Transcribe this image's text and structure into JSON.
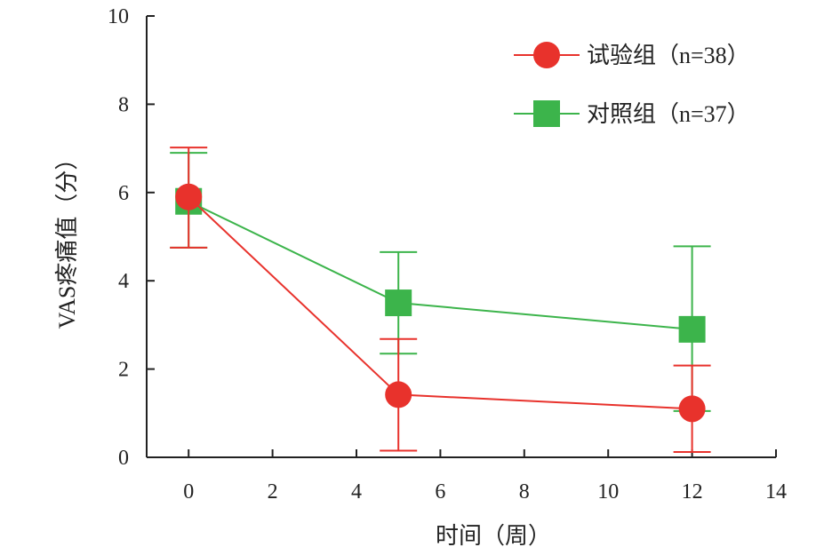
{
  "chart_data": {
    "type": "line",
    "xlabel": "时间（周）",
    "ylabel": "VAS疼痛值（分）",
    "xlim": [
      -1,
      14
    ],
    "ylim": [
      0,
      10
    ],
    "xticks": [
      0,
      2,
      4,
      6,
      8,
      10,
      12,
      14
    ],
    "yticks": [
      0,
      2,
      4,
      6,
      8,
      10
    ],
    "grid": false,
    "legend_position": "top-right",
    "series": [
      {
        "name": "试验组（n=38）",
        "color": "#e8322c",
        "marker": "circle",
        "x": [
          0,
          5,
          12
        ],
        "y": [
          5.9,
          1.42,
          1.1
        ],
        "err_low": [
          4.75,
          0.15,
          0.12
        ],
        "err_high": [
          7.02,
          2.68,
          2.08
        ]
      },
      {
        "name": "对照组（n=37）",
        "color": "#3cb44b",
        "marker": "square",
        "x": [
          0,
          5,
          12
        ],
        "y": [
          5.8,
          3.5,
          2.9
        ],
        "err_low": [
          4.75,
          2.35,
          1.05
        ],
        "err_high": [
          6.9,
          4.65,
          4.78
        ]
      }
    ]
  }
}
